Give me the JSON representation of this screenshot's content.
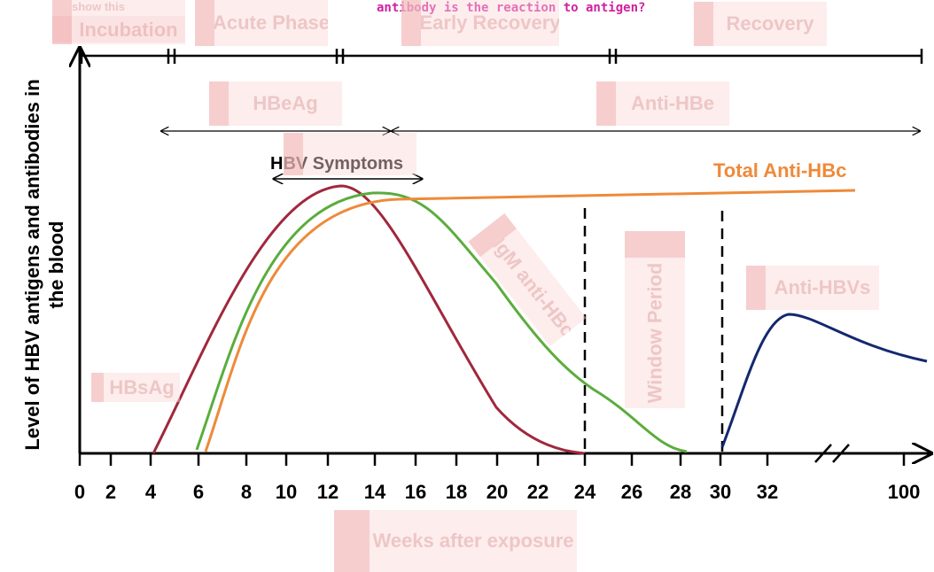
{
  "header": {
    "question": "antibody is the reaction to antigen?",
    "note": "show this"
  },
  "phases": [
    "Incubation",
    "Acute Phase",
    "Early Recovery",
    "Recovery"
  ],
  "labels": {
    "hbeag": "HBeAg",
    "anti_hbe": "Anti-HBe",
    "symptoms": "HBV Symptoms",
    "total_anti_hbc": "Total Anti-HBc",
    "igm_anti_hbc": "IgM anti-HBc",
    "window": "Window Period",
    "anti_hbs": "Anti-HBVs",
    "hbsag": "HBsAg"
  },
  "axes": {
    "y_label": "Level of HBV antigens and antibodies in the blood",
    "x_label": "Weeks after exposure",
    "x_ticks": [
      0,
      2,
      4,
      6,
      8,
      10,
      12,
      14,
      16,
      18,
      20,
      22,
      24,
      26,
      28,
      30,
      32,
      100
    ]
  }
}
